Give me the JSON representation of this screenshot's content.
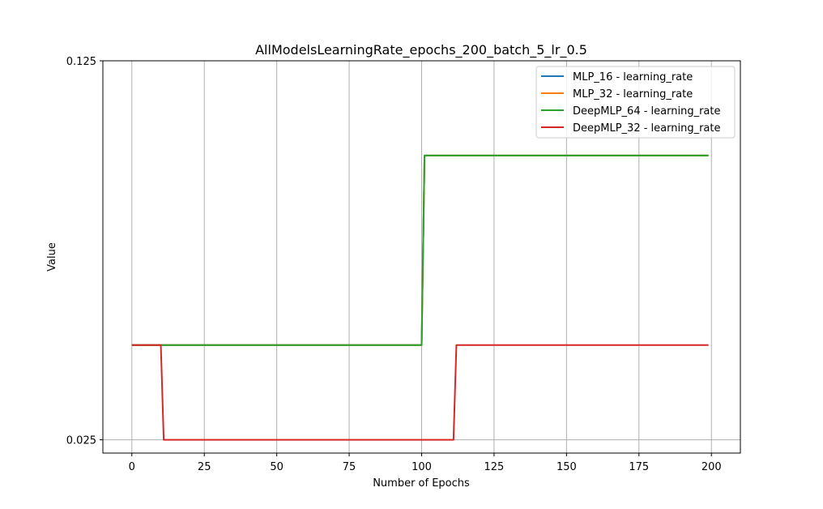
{
  "chart_data": {
    "type": "line",
    "title": "AllModelsLearningRate_epochs_200_batch_5_lr_0.5",
    "xlabel": "Number of Epochs",
    "ylabel": "Value",
    "xlim": [
      -10,
      210
    ],
    "ylim": [
      0.0215,
      0.125
    ],
    "x_ticks": [
      0,
      25,
      50,
      75,
      100,
      125,
      150,
      175,
      200
    ],
    "y_ticks": [
      0.025,
      0.125
    ],
    "y_tick_labels": [
      "0.025",
      "0.125"
    ],
    "grid": true,
    "legend_position": "top-right",
    "series": [
      {
        "name": "MLP_16 - learning_rate",
        "color": "#1f77b4",
        "points": [
          [
            0,
            0.05
          ],
          [
            100,
            0.05
          ],
          [
            101,
            0.1
          ],
          [
            199,
            0.1
          ]
        ]
      },
      {
        "name": "MLP_32 - learning_rate",
        "color": "#ff7f0e",
        "points": [
          [
            0,
            0.05
          ],
          [
            100,
            0.05
          ],
          [
            101,
            0.1
          ],
          [
            199,
            0.1
          ]
        ]
      },
      {
        "name": "DeepMLP_64 - learning_rate",
        "color": "#2ca02c",
        "points": [
          [
            0,
            0.05
          ],
          [
            100,
            0.05
          ],
          [
            101,
            0.1
          ],
          [
            199,
            0.1
          ]
        ]
      },
      {
        "name": "DeepMLP_32 - learning_rate",
        "color": "#d62728",
        "points": [
          [
            0,
            0.05
          ],
          [
            10,
            0.05
          ],
          [
            11,
            0.025
          ],
          [
            111,
            0.025
          ],
          [
            112,
            0.05
          ],
          [
            199,
            0.05
          ]
        ]
      }
    ]
  }
}
